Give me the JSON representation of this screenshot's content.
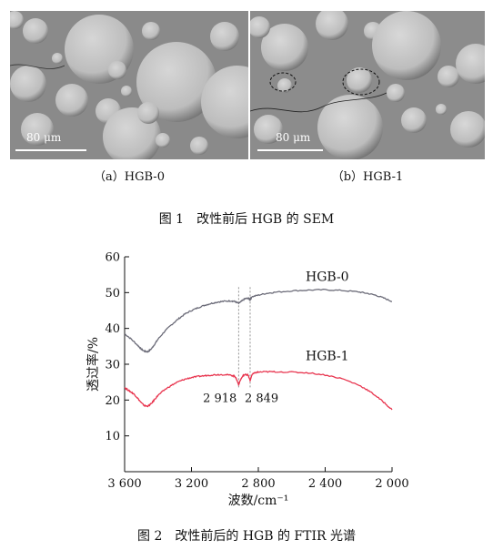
{
  "figure1": {
    "panel_a": {
      "caption": "（a）HGB-0",
      "scale_bar": "80 μm"
    },
    "panel_b": {
      "caption": "（b）HGB-1",
      "scale_bar": "80 μm"
    },
    "caption": "图 1　改性前后 HGB 的 SEM"
  },
  "figure2": {
    "caption": "图 2　改性前后的 HGB 的 FTIR 光谱"
  },
  "chart_data": {
    "type": "line",
    "xlabel": "波数/cm⁻¹",
    "ylabel": "透过率/%",
    "xlim": [
      3600,
      2000
    ],
    "ylim": [
      0,
      60
    ],
    "x_ticks": [
      3600,
      3200,
      2800,
      2400,
      2000
    ],
    "x_tick_labels": [
      "3 600",
      "3 200",
      "2 800",
      "2 400",
      "2 000"
    ],
    "y_ticks": [
      10,
      20,
      30,
      40,
      50,
      60
    ],
    "y_tick_labels": [
      "10",
      "20",
      "30",
      "40",
      "50",
      "60"
    ],
    "grid": false,
    "series": [
      {
        "name": "HGB-0",
        "color": "#6b6b78",
        "x": [
          3600,
          3560,
          3520,
          3500,
          3480,
          3460,
          3440,
          3420,
          3400,
          3360,
          3320,
          3280,
          3240,
          3200,
          3160,
          3120,
          3080,
          3040,
          3000,
          2960,
          2940,
          2918,
          2900,
          2880,
          2860,
          2849,
          2840,
          2800,
          2750,
          2700,
          2600,
          2500,
          2400,
          2300,
          2200,
          2150,
          2100,
          2050,
          2000
        ],
        "y": [
          38.5,
          37.0,
          35.2,
          34.2,
          33.6,
          33.5,
          34.3,
          35.6,
          37.0,
          39.2,
          41.0,
          42.6,
          44.0,
          45.0,
          45.8,
          46.5,
          47.0,
          47.4,
          47.6,
          47.7,
          47.5,
          47.0,
          47.6,
          48.3,
          48.4,
          48.0,
          48.8,
          49.3,
          49.8,
          50.1,
          50.5,
          50.7,
          50.8,
          50.6,
          50.2,
          49.8,
          49.3,
          48.5,
          47.5
        ],
        "label": "HGB-0"
      },
      {
        "name": "HGB-1",
        "color": "#e8344e",
        "x": [
          3600,
          3580,
          3560,
          3540,
          3520,
          3500,
          3480,
          3460,
          3440,
          3420,
          3400,
          3360,
          3320,
          3280,
          3240,
          3200,
          3160,
          3120,
          3080,
          3040,
          3000,
          2960,
          2940,
          2930,
          2918,
          2905,
          2890,
          2870,
          2860,
          2849,
          2838,
          2820,
          2800,
          2750,
          2700,
          2600,
          2500,
          2400,
          2300,
          2200,
          2150,
          2100,
          2050,
          2000
        ],
        "y": [
          23.5,
          22.8,
          22.2,
          21.5,
          20.4,
          19.2,
          18.4,
          18.3,
          19.0,
          20.2,
          21.3,
          22.9,
          24.1,
          25.1,
          25.8,
          26.3,
          26.6,
          26.8,
          27.0,
          27.1,
          27.1,
          26.9,
          26.6,
          25.8,
          24.3,
          25.8,
          26.9,
          27.2,
          26.8,
          25.4,
          27.1,
          27.6,
          27.8,
          27.9,
          27.9,
          27.8,
          27.6,
          27.0,
          26.0,
          24.2,
          22.9,
          21.3,
          19.4,
          17.3
        ],
        "label": "HGB-1"
      }
    ],
    "annotations": [
      {
        "text": "2 918",
        "x": 2918
      },
      {
        "text": "2 849",
        "x": 2849
      }
    ]
  }
}
